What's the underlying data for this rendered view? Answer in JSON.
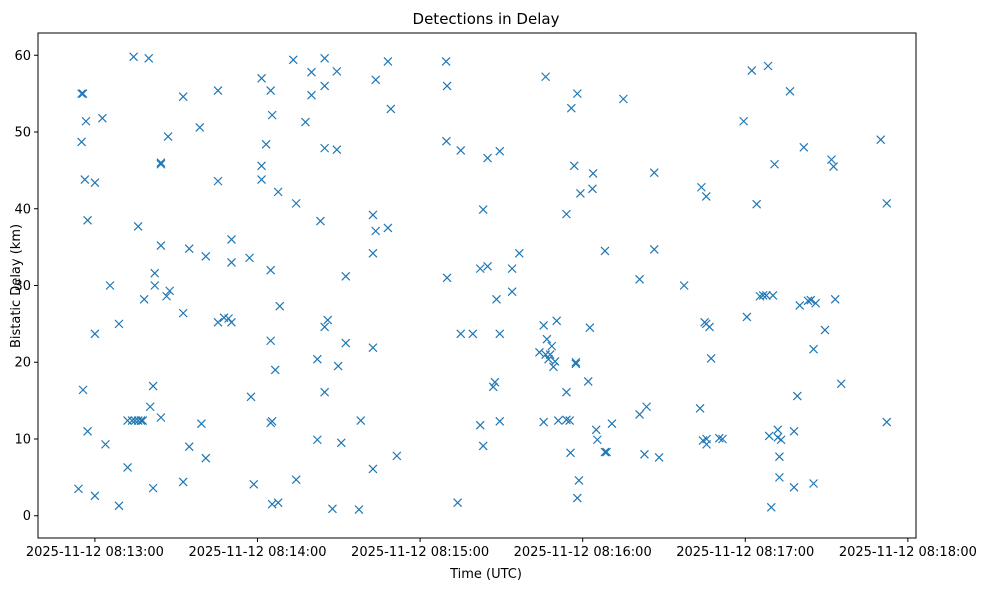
{
  "chart_data": {
    "type": "scatter",
    "title": "Detections in Delay",
    "xlabel": "Time (UTC)",
    "ylabel": "Bistatic Delay (km)",
    "marker": "x",
    "color": "#1f77b4",
    "xlim": [
      -0.35,
      5.05
    ],
    "ylim": [
      -2.9,
      62.9
    ],
    "x_unit": "minutes after 2025-11-12 08:13:00",
    "x_ticks": [
      {
        "value": 0,
        "label": "2025-11-12 08:13:00"
      },
      {
        "value": 1,
        "label": "2025-11-12 08:14:00"
      },
      {
        "value": 2,
        "label": "2025-11-12 08:15:00"
      },
      {
        "value": 3,
        "label": "2025-11-12 08:16:00"
      },
      {
        "value": 4,
        "label": "2025-11-12 08:17:00"
      },
      {
        "value": 5,
        "label": "2025-11-12 08:18:00"
      }
    ],
    "y_ticks": [
      {
        "value": 0,
        "label": "0"
      },
      {
        "value": 10,
        "label": "10"
      },
      {
        "value": 20,
        "label": "20"
      },
      {
        "value": 30,
        "label": "30"
      },
      {
        "value": 40,
        "label": "40"
      },
      {
        "value": 50,
        "label": "50"
      },
      {
        "value": 60,
        "label": "60"
      }
    ],
    "points": [
      [
        -0.101,
        3.5
      ],
      [
        -0.082,
        48.7
      ],
      [
        -0.082,
        55.0
      ],
      [
        -0.073,
        55.0
      ],
      [
        -0.073,
        16.4
      ],
      [
        -0.062,
        43.8
      ],
      [
        -0.055,
        51.4
      ],
      [
        -0.045,
        38.5
      ],
      [
        -0.045,
        11.0
      ],
      [
        0.0,
        43.4
      ],
      [
        0.0,
        23.7
      ],
      [
        0.0,
        2.6
      ],
      [
        0.046,
        51.8
      ],
      [
        0.065,
        9.3
      ],
      [
        0.093,
        30.0
      ],
      [
        0.148,
        25.0
      ],
      [
        0.148,
        1.3
      ],
      [
        0.201,
        12.4
      ],
      [
        0.201,
        6.3
      ],
      [
        0.229,
        12.4
      ],
      [
        0.238,
        59.8
      ],
      [
        0.247,
        12.4
      ],
      [
        0.266,
        37.7
      ],
      [
        0.266,
        12.4
      ],
      [
        0.284,
        12.4
      ],
      [
        0.294,
        12.4
      ],
      [
        0.303,
        28.2
      ],
      [
        0.331,
        59.6
      ],
      [
        0.34,
        14.2
      ],
      [
        0.358,
        16.9
      ],
      [
        0.358,
        3.6
      ],
      [
        0.368,
        31.6
      ],
      [
        0.368,
        30.0
      ],
      [
        0.406,
        46.0
      ],
      [
        0.406,
        45.8
      ],
      [
        0.406,
        35.2
      ],
      [
        0.406,
        12.8
      ],
      [
        0.441,
        28.6
      ],
      [
        0.45,
        49.4
      ],
      [
        0.46,
        29.3
      ],
      [
        0.543,
        54.6
      ],
      [
        0.543,
        26.4
      ],
      [
        0.543,
        4.4
      ],
      [
        0.58,
        34.8
      ],
      [
        0.58,
        9.0
      ],
      [
        0.645,
        50.6
      ],
      [
        0.655,
        12.0
      ],
      [
        0.682,
        33.8
      ],
      [
        0.682,
        7.5
      ],
      [
        0.757,
        55.4
      ],
      [
        0.757,
        43.6
      ],
      [
        0.757,
        25.2
      ],
      [
        0.794,
        25.8
      ],
      [
        0.822,
        25.7
      ],
      [
        0.84,
        36.0
      ],
      [
        0.84,
        33.0
      ],
      [
        0.84,
        25.2
      ],
      [
        0.951,
        33.6
      ],
      [
        0.96,
        15.5
      ],
      [
        0.977,
        4.1
      ],
      [
        1.025,
        57.0
      ],
      [
        1.025,
        45.6
      ],
      [
        1.025,
        43.8
      ],
      [
        1.053,
        48.4
      ],
      [
        1.081,
        55.4
      ],
      [
        1.081,
        32.0
      ],
      [
        1.081,
        22.8
      ],
      [
        1.081,
        12.1
      ],
      [
        1.09,
        52.2
      ],
      [
        1.09,
        12.3
      ],
      [
        1.09,
        1.5
      ],
      [
        1.109,
        19.0
      ],
      [
        1.127,
        42.2
      ],
      [
        1.127,
        1.7
      ],
      [
        1.137,
        27.3
      ],
      [
        1.22,
        59.4
      ],
      [
        1.238,
        40.7
      ],
      [
        1.238,
        4.7
      ],
      [
        1.295,
        51.3
      ],
      [
        1.332,
        57.8
      ],
      [
        1.332,
        54.8
      ],
      [
        1.368,
        9.9
      ],
      [
        1.368,
        20.4
      ],
      [
        1.387,
        38.4
      ],
      [
        1.413,
        59.6
      ],
      [
        1.413,
        47.9
      ],
      [
        1.413,
        24.6
      ],
      [
        1.413,
        16.1
      ],
      [
        1.413,
        56.0
      ],
      [
        1.432,
        25.5
      ],
      [
        1.461,
        0.9
      ],
      [
        1.488,
        57.9
      ],
      [
        1.488,
        47.7
      ],
      [
        1.496,
        19.5
      ],
      [
        1.515,
        9.5
      ],
      [
        1.543,
        31.2
      ],
      [
        1.543,
        22.5
      ],
      [
        1.635,
        12.4
      ],
      [
        1.624,
        0.8
      ],
      [
        1.71,
        39.2
      ],
      [
        1.71,
        34.2
      ],
      [
        1.71,
        21.9
      ],
      [
        1.71,
        6.1
      ],
      [
        1.727,
        56.8
      ],
      [
        1.727,
        37.1
      ],
      [
        1.802,
        59.2
      ],
      [
        1.802,
        37.5
      ],
      [
        1.82,
        53.0
      ],
      [
        1.857,
        7.8
      ],
      [
        2.16,
        59.2
      ],
      [
        2.162,
        48.8
      ],
      [
        2.166,
        56.0
      ],
      [
        2.166,
        31.0
      ],
      [
        2.231,
        1.7
      ],
      [
        2.25,
        47.6
      ],
      [
        2.25,
        23.7
      ],
      [
        2.324,
        23.7
      ],
      [
        2.37,
        32.2
      ],
      [
        2.37,
        11.8
      ],
      [
        2.388,
        39.9
      ],
      [
        2.388,
        9.1
      ],
      [
        2.415,
        46.6
      ],
      [
        2.415,
        32.5
      ],
      [
        2.45,
        16.8
      ],
      [
        2.46,
        17.4
      ],
      [
        2.47,
        28.2
      ],
      [
        2.49,
        47.5
      ],
      [
        2.49,
        23.7
      ],
      [
        2.49,
        12.3
      ],
      [
        2.566,
        29.2
      ],
      [
        2.566,
        32.2
      ],
      [
        2.61,
        34.2
      ],
      [
        2.734,
        21.3
      ],
      [
        2.76,
        24.8
      ],
      [
        2.76,
        12.2
      ],
      [
        2.772,
        21.0
      ],
      [
        2.772,
        57.2
      ],
      [
        2.78,
        23.0
      ],
      [
        2.79,
        20.4
      ],
      [
        2.8,
        21.0
      ],
      [
        2.81,
        22.1
      ],
      [
        2.82,
        19.4
      ],
      [
        2.83,
        20.1
      ],
      [
        2.84,
        25.4
      ],
      [
        2.85,
        12.4
      ],
      [
        2.9,
        39.3
      ],
      [
        2.9,
        16.1
      ],
      [
        2.9,
        12.5
      ],
      [
        2.92,
        12.4
      ],
      [
        2.925,
        8.2
      ],
      [
        2.93,
        53.1
      ],
      [
        2.948,
        45.6
      ],
      [
        2.958,
        20.0
      ],
      [
        2.958,
        19.8
      ],
      [
        2.967,
        55.0
      ],
      [
        2.967,
        2.3
      ],
      [
        2.977,
        4.6
      ],
      [
        2.986,
        42.0
      ],
      [
        3.034,
        17.5
      ],
      [
        3.044,
        24.5
      ],
      [
        3.06,
        42.6
      ],
      [
        3.064,
        44.6
      ],
      [
        3.083,
        11.2
      ],
      [
        3.09,
        9.9
      ],
      [
        3.137,
        34.5
      ],
      [
        3.137,
        8.3
      ],
      [
        3.147,
        8.3
      ],
      [
        3.18,
        12.0
      ],
      [
        3.25,
        54.3
      ],
      [
        3.35,
        30.8
      ],
      [
        3.35,
        13.2
      ],
      [
        3.38,
        8.0
      ],
      [
        3.393,
        14.2
      ],
      [
        3.44,
        44.7
      ],
      [
        3.44,
        34.7
      ],
      [
        3.47,
        7.6
      ],
      [
        3.624,
        30.0
      ],
      [
        3.722,
        14.0
      ],
      [
        3.73,
        42.8
      ],
      [
        3.74,
        9.8
      ],
      [
        3.75,
        25.2
      ],
      [
        3.76,
        41.6
      ],
      [
        3.76,
        25.0
      ],
      [
        3.762,
        9.3
      ],
      [
        3.762,
        10.0
      ],
      [
        3.78,
        24.6
      ],
      [
        3.79,
        20.5
      ],
      [
        3.84,
        10.1
      ],
      [
        3.86,
        10.0
      ],
      [
        3.99,
        51.4
      ],
      [
        4.01,
        25.9
      ],
      [
        4.04,
        58.0
      ],
      [
        4.07,
        40.6
      ],
      [
        4.09,
        28.6
      ],
      [
        4.11,
        28.7
      ],
      [
        4.13,
        28.7
      ],
      [
        4.14,
        58.6
      ],
      [
        4.147,
        10.4
      ],
      [
        4.16,
        1.1
      ],
      [
        4.17,
        28.7
      ],
      [
        4.18,
        45.8
      ],
      [
        4.2,
        11.2
      ],
      [
        4.2,
        10.2
      ],
      [
        4.21,
        7.7
      ],
      [
        4.21,
        5.0
      ],
      [
        4.22,
        9.9
      ],
      [
        4.275,
        55.3
      ],
      [
        4.3,
        11.0
      ],
      [
        4.3,
        3.7
      ],
      [
        4.32,
        15.6
      ],
      [
        4.335,
        27.4
      ],
      [
        4.36,
        48.0
      ],
      [
        4.386,
        28.0
      ],
      [
        4.403,
        28.1
      ],
      [
        4.42,
        21.7
      ],
      [
        4.42,
        4.2
      ],
      [
        4.433,
        27.7
      ],
      [
        4.49,
        24.2
      ],
      [
        4.53,
        46.4
      ],
      [
        4.543,
        45.5
      ],
      [
        4.553,
        28.2
      ],
      [
        4.59,
        17.2
      ],
      [
        4.833,
        49.0
      ],
      [
        4.87,
        40.7
      ],
      [
        4.87,
        12.2
      ]
    ]
  }
}
